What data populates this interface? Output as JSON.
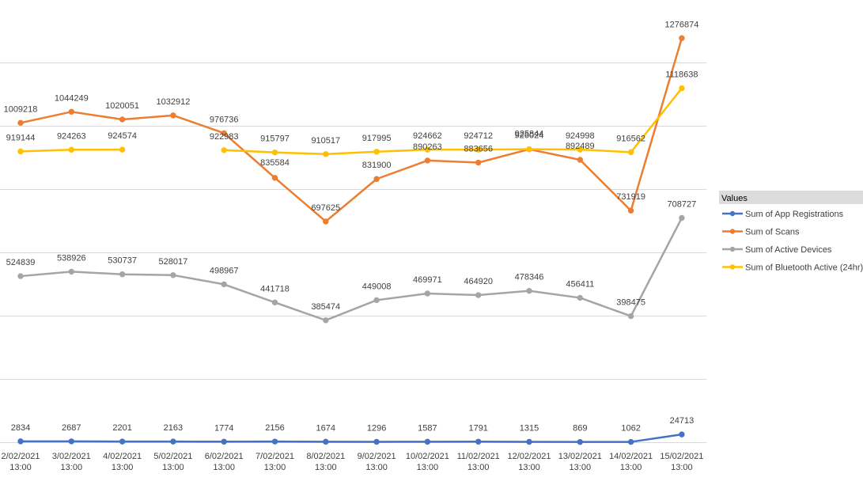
{
  "chart_data": {
    "type": "line",
    "categories": [
      [
        "2/02/2021",
        "13:00"
      ],
      [
        "3/02/2021",
        "13:00"
      ],
      [
        "4/02/2021",
        "13:00"
      ],
      [
        "5/02/2021",
        "13:00"
      ],
      [
        "6/02/2021",
        "13:00"
      ],
      [
        "7/02/2021",
        "13:00"
      ],
      [
        "8/02/2021",
        "13:00"
      ],
      [
        "9/02/2021",
        "13:00"
      ],
      [
        "10/02/2021",
        "13:00"
      ],
      [
        "11/02/2021",
        "13:00"
      ],
      [
        "12/02/2021",
        "13:00"
      ],
      [
        "13/02/2021",
        "13:00"
      ],
      [
        "14/02/2021",
        "13:00"
      ],
      [
        "15/02/2021",
        "13:00"
      ]
    ],
    "ylim": [
      0,
      1400000
    ],
    "grid": true,
    "legend_title": "Values",
    "legend_position": "right",
    "series": [
      {
        "name": "Sum of App Registrations",
        "color": "#4472C4",
        "values": [
          2834,
          2687,
          2201,
          2163,
          1774,
          2156,
          1674,
          1296,
          1587,
          1791,
          1315,
          869,
          1062,
          24713
        ]
      },
      {
        "name": "Sum of Scans",
        "color": "#ED7D31",
        "values": [
          1009218,
          1044249,
          1020051,
          1032912,
          976736,
          835584,
          697625,
          831900,
          890263,
          883656,
          925844,
          892489,
          731919,
          1276874
        ]
      },
      {
        "name": "Sum of Active Devices",
        "color": "#A5A5A5",
        "values": [
          524839,
          538926,
          530737,
          528017,
          498967,
          441718,
          385474,
          449008,
          469971,
          464920,
          478346,
          456411,
          398475,
          708727
        ]
      },
      {
        "name": "Sum of Bluetooth Active (24hr)",
        "color": "#FFC000",
        "values": [
          919144,
          924263,
          924574,
          null,
          922983,
          915797,
          910517,
          917995,
          924662,
          924712,
          926024,
          924998,
          916562,
          1118638
        ]
      }
    ]
  }
}
